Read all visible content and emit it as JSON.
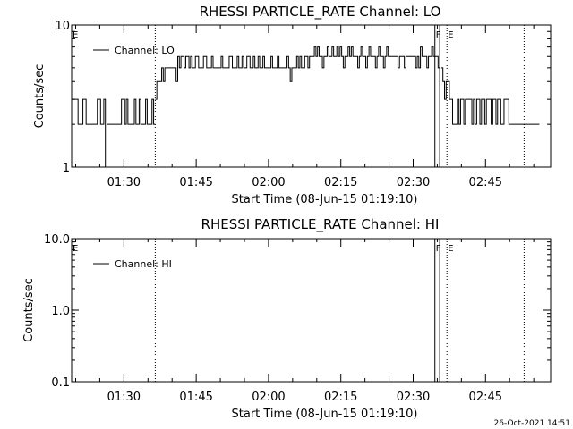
{
  "footer": {
    "timestamp": "26-Oct-2021 14:51"
  },
  "chart_data": [
    {
      "type": "line",
      "title": "RHESSI PARTICLE_RATE Channel: LO",
      "xlabel": "Start Time (08-Jun-15 01:19:10)",
      "ylabel": "Counts/sec",
      "yscale": "log",
      "ylim": [
        1,
        10
      ],
      "yticks": [
        "1",
        "10"
      ],
      "xlim": [
        "01:19:10",
        "02:58:30"
      ],
      "xticks": [
        "01:30",
        "01:45",
        "02:00",
        "02:15",
        "02:30",
        "02:45"
      ],
      "grid": false,
      "legend": {
        "position": "top-left",
        "entries": [
          "Channel: LO"
        ]
      },
      "markers": [
        {
          "time": "01:19:10",
          "label": "E",
          "style": "none"
        },
        {
          "time": "01:36:30",
          "label": "",
          "style": "dotted"
        },
        {
          "time": "02:34:30",
          "label": "F",
          "style": "solid"
        },
        {
          "time": "02:35:30",
          "label": "",
          "style": "solid"
        },
        {
          "time": "02:37:00",
          "label": "E",
          "style": "dotted"
        },
        {
          "time": "02:53:00",
          "label": "",
          "style": "dotted"
        }
      ],
      "series": [
        {
          "name": "Channel: LO",
          "segments": [
            {
              "start": "01:19:10",
              "end": "01:36:10",
              "step_sec": 20,
              "values": [
                3,
                3,
                3,
                3,
                2,
                2,
                2,
                3,
                3,
                2,
                2,
                2,
                2,
                2,
                2,
                2,
                3,
                3,
                2,
                2,
                3,
                1,
                2,
                2,
                2,
                2,
                2,
                2,
                2,
                2,
                2,
                3,
                3,
                2,
                3,
                2,
                2,
                2,
                2,
                3,
                2,
                2,
                3,
                2,
                2,
                2,
                3,
                2,
                2,
                2,
                3,
                2
              ]
            },
            {
              "start": "01:36:30",
              "end": "02:34:50",
              "step_sec": 20,
              "values": [
                3,
                4,
                4,
                4,
                5,
                4,
                5,
                5,
                5,
                5,
                5,
                5,
                5,
                4,
                6,
                5,
                6,
                6,
                5,
                6,
                6,
                5,
                6,
                5,
                5,
                6,
                6,
                5,
                5,
                5,
                6,
                6,
                5,
                5,
                5,
                6,
                5,
                5,
                5,
                5,
                5,
                6,
                5,
                5,
                5,
                5,
                6,
                6,
                5,
                5,
                5,
                6,
                5,
                5,
                6,
                5,
                5,
                6,
                6,
                5,
                5,
                6,
                5,
                5,
                6,
                5,
                5,
                6,
                5,
                5,
                5,
                5,
                6,
                5,
                5,
                5,
                6,
                5,
                5,
                5,
                5,
                5,
                6,
                5,
                4,
                5,
                5,
                5,
                6,
                5,
                6,
                5,
                5,
                6,
                6,
                5,
                6,
                6,
                6,
                7,
                6,
                7,
                6,
                6,
                5,
                6,
                6,
                7,
                6,
                6,
                7,
                6,
                6,
                7,
                6,
                7,
                6,
                5,
                6,
                6,
                7,
                6,
                7,
                6,
                6,
                6,
                5,
                6,
                7,
                6,
                6,
                5,
                6,
                7,
                6,
                6,
                6,
                5,
                6,
                7,
                6,
                6,
                5,
                6,
                7,
                6,
                6,
                6,
                6,
                6,
                6,
                5,
                6,
                6,
                6,
                5,
                6,
                6,
                6,
                6,
                6,
                6,
                5,
                6,
                5,
                7,
                6,
                6,
                6,
                5,
                6,
                6,
                7,
                6,
                6,
                6,
                5
              ]
            },
            {
              "start": "02:35:50",
              "end": "02:49:50",
              "step_sec": 20,
              "values": [
                5,
                4,
                3,
                4,
                4,
                3,
                3,
                2,
                2,
                2,
                3,
                2,
                3,
                3,
                2,
                3,
                3,
                3,
                3,
                2,
                3,
                2,
                3,
                3,
                2,
                3,
                3,
                2,
                3,
                3,
                3,
                2,
                3,
                3,
                2,
                3,
                3,
                2,
                2,
                3,
                3,
                3,
                2
              ]
            },
            {
              "start": "02:50:10",
              "end": "02:55:50",
              "step_sec": 20,
              "values": [
                2,
                2,
                2,
                2,
                2,
                2,
                2,
                2,
                2,
                2,
                2,
                2,
                2,
                2,
                2,
                2,
                2,
                2
              ]
            }
          ]
        }
      ]
    },
    {
      "type": "line",
      "title": "RHESSI PARTICLE_RATE Channel: HI",
      "xlabel": "Start Time (08-Jun-15 01:19:10)",
      "ylabel": "Counts/sec",
      "yscale": "log",
      "ylim": [
        0.1,
        10
      ],
      "yticks": [
        "0.1",
        "1.0",
        "10.0"
      ],
      "xlim": [
        "01:19:10",
        "02:58:30"
      ],
      "xticks": [
        "01:30",
        "01:45",
        "02:00",
        "02:15",
        "02:30",
        "02:45"
      ],
      "grid": false,
      "legend": {
        "position": "top-left",
        "entries": [
          "Channel: HI"
        ]
      },
      "markers": [
        {
          "time": "01:19:10",
          "label": "E",
          "style": "none"
        },
        {
          "time": "01:36:30",
          "label": "",
          "style": "dotted"
        },
        {
          "time": "02:34:30",
          "label": "F",
          "style": "solid"
        },
        {
          "time": "02:35:30",
          "label": "",
          "style": "solid"
        },
        {
          "time": "02:37:00",
          "label": "E",
          "style": "dotted"
        },
        {
          "time": "02:53:00",
          "label": "",
          "style": "dotted"
        }
      ],
      "series": [
        {
          "name": "Channel: HI",
          "segments": []
        }
      ]
    }
  ]
}
